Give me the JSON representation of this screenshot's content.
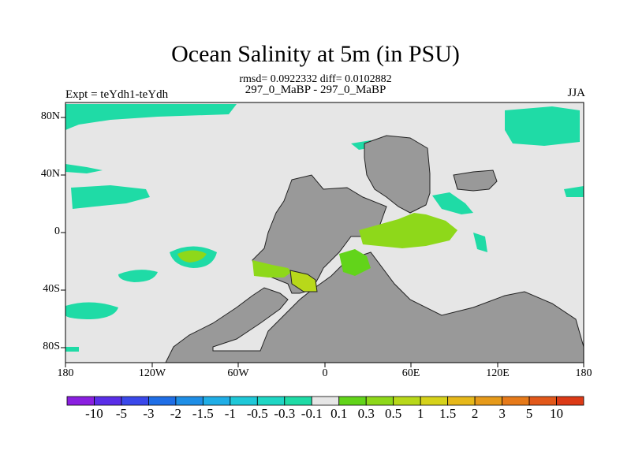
{
  "title": "Ocean Salinity at 5m (in PSU)",
  "subtitle": "rmsd= 0.0922332 diff= 0.0102882",
  "center_label": "297_0_MaBP - 297_0_MaBP",
  "left_label": "Expt = teYdh1-teYdh",
  "right_label": "JJA",
  "x_ticks": [
    "180",
    "120W",
    "60W",
    "0",
    "60E",
    "120E",
    "180"
  ],
  "y_ticks": [
    "80N",
    "40N",
    "0",
    "40S",
    "80S"
  ],
  "colorbar": {
    "labels": [
      "-10",
      "-5",
      "-3",
      "-2",
      "-1.5",
      "-1",
      "-0.5",
      "-0.3",
      "-0.1",
      "0.1",
      "0.3",
      "0.5",
      "1",
      "1.5",
      "2",
      "3",
      "5",
      "10"
    ],
    "colors": [
      "#8a1fe0",
      "#5a2ee8",
      "#3a48ea",
      "#1f6ee6",
      "#1e8ee6",
      "#20aee6",
      "#1fc8d8",
      "#1fd6c4",
      "#1fdba6",
      "#e6e6e6",
      "#62d41a",
      "#8ed81a",
      "#b8d81a",
      "#d6d21a",
      "#e6b81a",
      "#e69a1a",
      "#e67a1a",
      "#e2581a",
      "#dc3a16"
    ]
  },
  "map_colors": {
    "background": "#e6e6e6",
    "land": "#999999",
    "neg_small": "#1fdba6",
    "pos_small": "#62d41a",
    "pos_mid": "#8ed81a",
    "pos_high": "#b8d81a"
  }
}
